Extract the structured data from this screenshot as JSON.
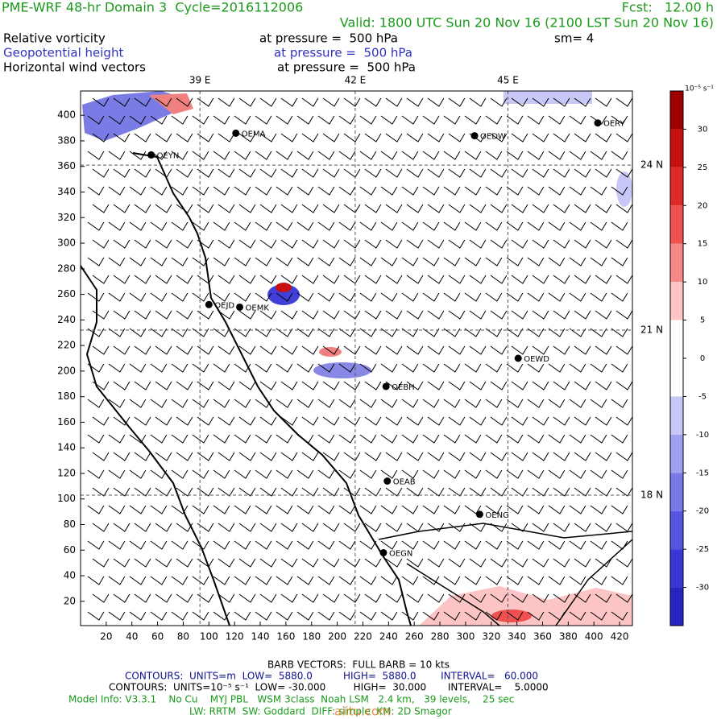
{
  "header": {
    "title": "PME-WRF 48-hr Domain 3  Cycle=2016112006",
    "forecast": "Fcst:   12.00 h",
    "valid": "Valid: 1800 UTC Sun 20 Nov 16 (2100 LST Sun 20 Nov 16)",
    "fields": [
      {
        "name": "Relative vorticity",
        "level": "at pressure =  500 hPa",
        "extra": "sm= 4"
      },
      {
        "name": "Geopotential height",
        "level": "at pressure =  500 hPa"
      },
      {
        "name": "Horizontal wind vectors",
        "level": "at pressure =  500 hPa"
      }
    ]
  },
  "map": {
    "xlim": [
      0,
      430
    ],
    "ylim": [
      1,
      419
    ],
    "xticks": [
      20,
      40,
      60,
      80,
      100,
      120,
      140,
      160,
      180,
      200,
      220,
      240,
      260,
      280,
      300,
      320,
      340,
      360,
      380,
      400,
      420
    ],
    "yticks": [
      20,
      40,
      60,
      80,
      100,
      120,
      140,
      160,
      180,
      200,
      220,
      240,
      260,
      280,
      300,
      320,
      340,
      360,
      380,
      400
    ],
    "meridians": [
      {
        "value": 93,
        "label": "39 E"
      },
      {
        "value": 214,
        "label": "42 E"
      },
      {
        "value": 333,
        "label": "45 E"
      }
    ],
    "parallels": [
      {
        "value": 361,
        "label": "24 N"
      },
      {
        "value": 232,
        "label": "21 N"
      },
      {
        "value": 103,
        "label": "18 N"
      }
    ],
    "stations": [
      {
        "name": "OEYN",
        "x": 55,
        "y": 369
      },
      {
        "name": "OEMA",
        "x": 121,
        "y": 386
      },
      {
        "name": "OEDW",
        "x": 307,
        "y": 384
      },
      {
        "name": "OERY",
        "x": 403,
        "y": 394
      },
      {
        "name": "OEJD",
        "x": 100,
        "y": 252
      },
      {
        "name": "OEMK",
        "x": 124,
        "y": 250
      },
      {
        "name": "OEWD",
        "x": 341,
        "y": 210
      },
      {
        "name": "OEBH",
        "x": 238,
        "y": 188
      },
      {
        "name": "OEAB",
        "x": 239,
        "y": 114
      },
      {
        "name": "OENG",
        "x": 311,
        "y": 88
      },
      {
        "name": "OEGN",
        "x": 236,
        "y": 58
      }
    ]
  },
  "colorbar": {
    "units": "10⁻⁵ s⁻¹",
    "range": [
      -35,
      35
    ],
    "ticks": [
      30,
      25,
      20,
      15,
      10,
      5,
      0,
      -5,
      -10,
      -15,
      -20,
      -25,
      -30
    ],
    "colors": [
      "#a00000",
      "#c81010",
      "#e02828",
      "#f05050",
      "#f88888",
      "#fcc4c4",
      "#ffffff",
      "#ffffff",
      "#c8c8f8",
      "#a0a0f0",
      "#7878e8",
      "#5555e0",
      "#3838d8",
      "#2424c0"
    ]
  },
  "footer": {
    "barbs": "BARB VECTORS:  FULL BARB = 10 kts",
    "contours_height": "CONTOURS:  UNITS=m  LOW=  5880.0          HIGH=  5880.0        INTERVAL=   60.000",
    "contours_vort": "CONTOURS:  UNITS=10⁻⁵ s⁻¹  LOW= -30.000         HIGH=  30.000       INTERVAL=    5.0000",
    "model": "Model Info: V3.3.1    No Cu    MYJ PBL   WSM 3class  Noah LSM   2.4 km,   39 levels,    25 sec",
    "physics": "LW: RRTM  SW: Goddard  DIFF: simple  KM: 2D Smagor",
    "watermark": "aiitu.com"
  }
}
